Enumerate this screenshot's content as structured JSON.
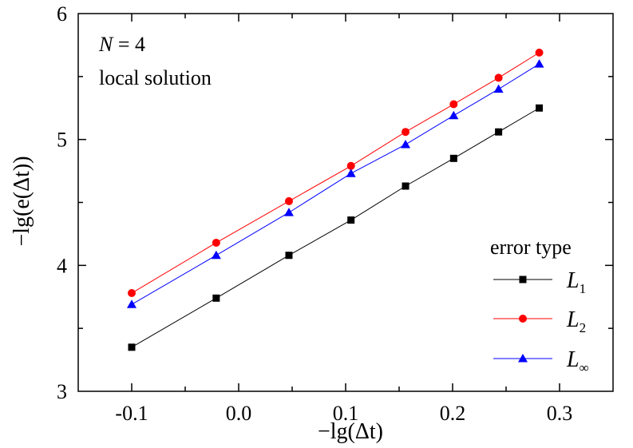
{
  "chart_data": {
    "type": "line",
    "xlabel": "−lg(Δt)",
    "ylabel": "−lg(e(Δt))",
    "xlim": [
      -0.15,
      0.35
    ],
    "ylim": [
      3,
      6
    ],
    "x_ticks": [
      -0.1,
      0.0,
      0.1,
      0.2,
      0.3
    ],
    "x_tick_labels": [
      "-0.1",
      "0.0",
      "0.1",
      "0.2",
      "0.3"
    ],
    "y_ticks": [
      3,
      4,
      5,
      6
    ],
    "y_tick_labels": [
      "3",
      "4",
      "5",
      "6"
    ],
    "annotations": {
      "n_label": "N = 4",
      "subtitle": "local solution"
    },
    "legend": {
      "title": "error type",
      "placement": "bottom-right"
    },
    "x": [
      -0.1,
      -0.021,
      0.047,
      0.105,
      0.156,
      0.201,
      0.243,
      0.281
    ],
    "series": [
      {
        "name": "L1",
        "label_main": "L",
        "label_sub": "1",
        "color": "#000000",
        "marker": "square",
        "values": [
          3.35,
          3.74,
          4.08,
          4.36,
          4.63,
          4.85,
          5.06,
          5.25
        ]
      },
      {
        "name": "L2",
        "label_main": "L",
        "label_sub": "2",
        "color": "#ff0000",
        "marker": "circle",
        "values": [
          3.78,
          4.18,
          4.51,
          4.79,
          5.06,
          5.28,
          5.49,
          5.69
        ]
      },
      {
        "name": "L∞",
        "label_main": "L",
        "label_sub": "∞",
        "color": "#0000ff",
        "marker": "triangle",
        "values": [
          3.69,
          4.08,
          4.42,
          4.73,
          4.96,
          5.19,
          5.4,
          5.6
        ]
      }
    ]
  }
}
